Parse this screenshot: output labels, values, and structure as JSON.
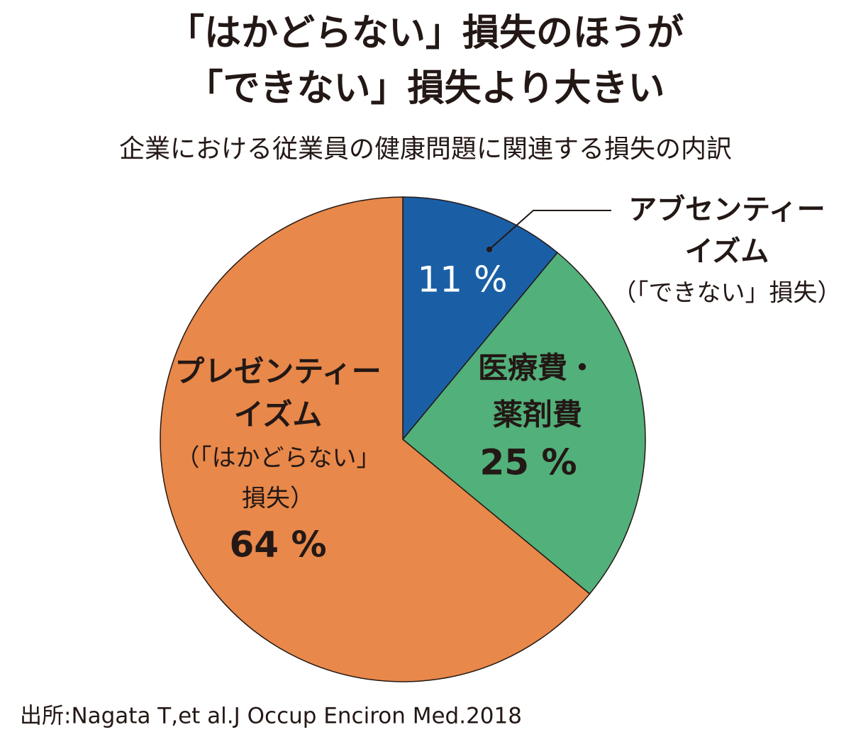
{
  "chart_data": {
    "type": "pie",
    "title": [
      "「はかどらない」損失のほうが",
      "「できない」損失より大きい"
    ],
    "subtitle": "企業における従業員の健康問題に関連する損失の内訳",
    "source": "出所:Nagata T,et al.J Occup Enciron Med.2018",
    "categories": [
      [
        "アブセンティー",
        "イズム",
        "（「できない」損失）"
      ],
      [
        "医療費・",
        "薬剤費"
      ],
      [
        "プレゼンティー",
        "イズム",
        "（「はかどらない」",
        "損失）"
      ]
    ],
    "values": [
      11,
      25,
      64
    ],
    "value_labels": [
      "11 %",
      "25 %",
      "64 %"
    ],
    "colors": [
      "#1a5fa6",
      "#52b07a",
      "#e8884a"
    ]
  }
}
